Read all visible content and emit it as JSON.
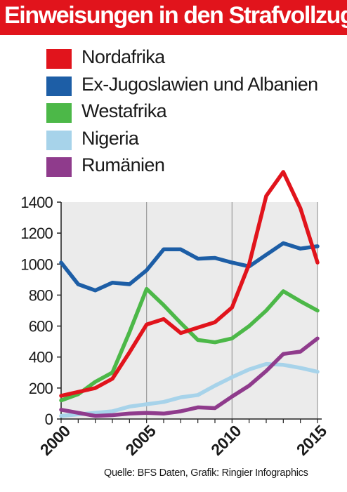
{
  "header": {
    "title": "Einweisungen in den Strafvollzug"
  },
  "source": "Quelle: BFS Daten,  Grafik: Ringier Infographics",
  "chart_data": {
    "type": "line",
    "title": "Einweisungen in den Strafvollzug",
    "xlabel": "",
    "ylabel": "",
    "xlim": [
      2000,
      2015
    ],
    "ylim": [
      0,
      1400
    ],
    "xticks": [
      2000,
      2005,
      2010,
      2015
    ],
    "yticks": [
      0,
      200,
      400,
      600,
      800,
      1000,
      1200,
      1400
    ],
    "grid": "vertical lines at 2000, 2005, 2010, 2015",
    "legend_position": "top-left",
    "x": [
      2000,
      2001,
      2002,
      2003,
      2004,
      2005,
      2006,
      2007,
      2008,
      2009,
      2010,
      2011,
      2012,
      2013,
      2014,
      2015
    ],
    "series": [
      {
        "name": "Nordafrika",
        "color": "#e1141c",
        "values": [
          150,
          175,
          200,
          260,
          430,
          610,
          645,
          555,
          590,
          625,
          720,
          1000,
          1440,
          1595,
          1360,
          1010
        ]
      },
      {
        "name": "Ex-Jugoslawien und Albanien",
        "color": "#1d5ea6",
        "values": [
          1010,
          870,
          830,
          880,
          870,
          960,
          1095,
          1095,
          1035,
          1040,
          1010,
          985,
          1060,
          1135,
          1100,
          1115
        ]
      },
      {
        "name": "Westafrika",
        "color": "#4cb848",
        "values": [
          120,
          160,
          240,
          300,
          560,
          840,
          735,
          620,
          510,
          495,
          520,
          600,
          700,
          825,
          760,
          700
        ]
      },
      {
        "name": "Nigeria",
        "color": "#a7d3ea",
        "values": [
          20,
          30,
          40,
          50,
          80,
          95,
          110,
          140,
          155,
          215,
          270,
          320,
          355,
          350,
          330,
          305
        ]
      },
      {
        "name": "Rumänien",
        "color": "#8f3b8c",
        "values": [
          60,
          40,
          20,
          25,
          35,
          40,
          35,
          50,
          75,
          70,
          145,
          215,
          310,
          420,
          435,
          520
        ]
      }
    ]
  }
}
